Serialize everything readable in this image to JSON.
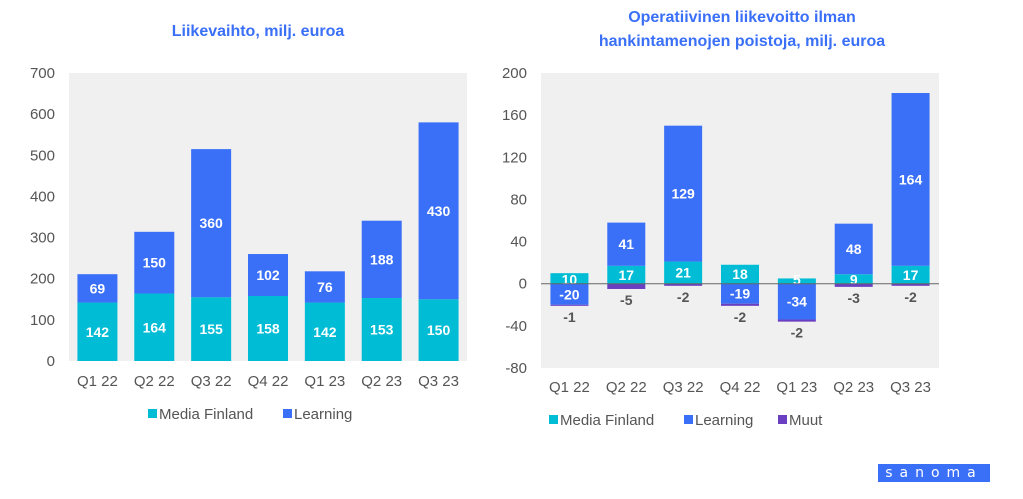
{
  "colors": {
    "media_finland": "#00bcd4",
    "learning": "#3a6ff7",
    "muut": "#6a3fc2",
    "plot_bg": "#f0f0f0",
    "title": "#3a6ff7"
  },
  "logo": "sanoma",
  "chart_data": [
    {
      "type": "bar",
      "stacked": true,
      "title": "Liikevaihto, milj. euroa",
      "xlabel": "",
      "ylabel": "",
      "categories": [
        "Q1 22",
        "Q2 22",
        "Q3 22",
        "Q4 22",
        "Q1 23",
        "Q2 23",
        "Q3 23"
      ],
      "series": [
        {
          "name": "Media Finland",
          "values": [
            142,
            164,
            155,
            158,
            142,
            153,
            150
          ]
        },
        {
          "name": "Learning",
          "values": [
            69,
            150,
            360,
            102,
            76,
            188,
            430
          ]
        }
      ],
      "ylim": [
        0,
        700
      ],
      "yticks": [
        0,
        100,
        200,
        300,
        400,
        500,
        600,
        700
      ],
      "legend": "bottom",
      "grid": false
    },
    {
      "type": "bar",
      "stacked": true,
      "title": "Operatiivinen liikevoitto ilman hankintamenojen poistoja, milj. euroa",
      "title_lines": [
        "Operatiivinen liikevoitto ilman",
        "hankintamenojen poistoja, milj. euroa"
      ],
      "xlabel": "",
      "ylabel": "",
      "categories": [
        "Q1 22",
        "Q2 22",
        "Q3 22",
        "Q4 22",
        "Q1 23",
        "Q2 23",
        "Q3 23"
      ],
      "series": [
        {
          "name": "Media Finland",
          "values": [
            10,
            17,
            21,
            18,
            5,
            9,
            17
          ]
        },
        {
          "name": "Learning",
          "values": [
            -20,
            41,
            129,
            -19,
            -34,
            48,
            164
          ]
        },
        {
          "name": "Muut",
          "values": [
            -1,
            -5,
            -2,
            -2,
            -2,
            -3,
            -2
          ]
        }
      ],
      "ylim": [
        -80,
        200
      ],
      "yticks": [
        -80,
        -40,
        0,
        40,
        80,
        120,
        160,
        200
      ],
      "legend": "bottom",
      "grid": false
    }
  ]
}
